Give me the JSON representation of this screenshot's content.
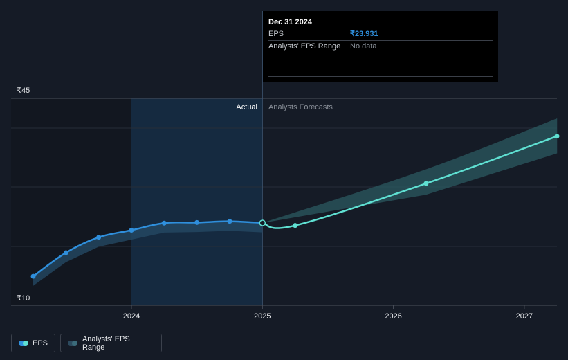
{
  "chart_data": {
    "type": "line",
    "y_unit_prefix": "₹",
    "ylim": [
      10,
      45
    ],
    "y_tick_labels": [
      "₹45",
      "₹10"
    ],
    "x_tick_labels": [
      "2024",
      "2025",
      "2026",
      "2027"
    ],
    "region_labels": {
      "actual": "Actual",
      "forecast": "Analysts Forecasts"
    },
    "series": [
      {
        "name": "EPS",
        "kind": "actual",
        "color": "#2f8fdc",
        "points": [
          {
            "x": 2023.25,
            "y": 14.9
          },
          {
            "x": 2023.5,
            "y": 18.9
          },
          {
            "x": 2023.75,
            "y": 21.5
          },
          {
            "x": 2024.0,
            "y": 22.7
          },
          {
            "x": 2024.25,
            "y": 23.9
          },
          {
            "x": 2024.5,
            "y": 24.0
          },
          {
            "x": 2024.75,
            "y": 24.2
          },
          {
            "x": 2025.0,
            "y": 23.931
          }
        ]
      },
      {
        "name": "EPS",
        "kind": "forecast",
        "color": "#5fe0d2",
        "points": [
          {
            "x": 2025.0,
            "y": 23.931
          },
          {
            "x": 2025.25,
            "y": 23.5
          },
          {
            "x": 2026.25,
            "y": 30.6
          },
          {
            "x": 2027.25,
            "y": 38.6
          }
        ]
      }
    ],
    "forecast_range": {
      "upper": [
        {
          "x": 2025.0,
          "y": 23.931
        },
        {
          "x": 2026.25,
          "y": 33.0
        },
        {
          "x": 2027.25,
          "y": 41.6
        }
      ],
      "lower": [
        {
          "x": 2025.0,
          "y": 23.931
        },
        {
          "x": 2026.25,
          "y": 28.7
        },
        {
          "x": 2027.25,
          "y": 35.7
        }
      ]
    }
  },
  "tooltip": {
    "date": "Dec 31 2024",
    "eps_label": "EPS",
    "eps_value": "₹23.931",
    "range_label": "Analysts' EPS Range",
    "range_value": "No data"
  },
  "legend": {
    "eps_label": "EPS",
    "range_label": "Analysts' EPS Range"
  },
  "colors": {
    "background": "#151b26",
    "actual_line": "#2f8fdc",
    "forecast_line": "#5fe0d2",
    "highlight_band": "#16304a"
  }
}
